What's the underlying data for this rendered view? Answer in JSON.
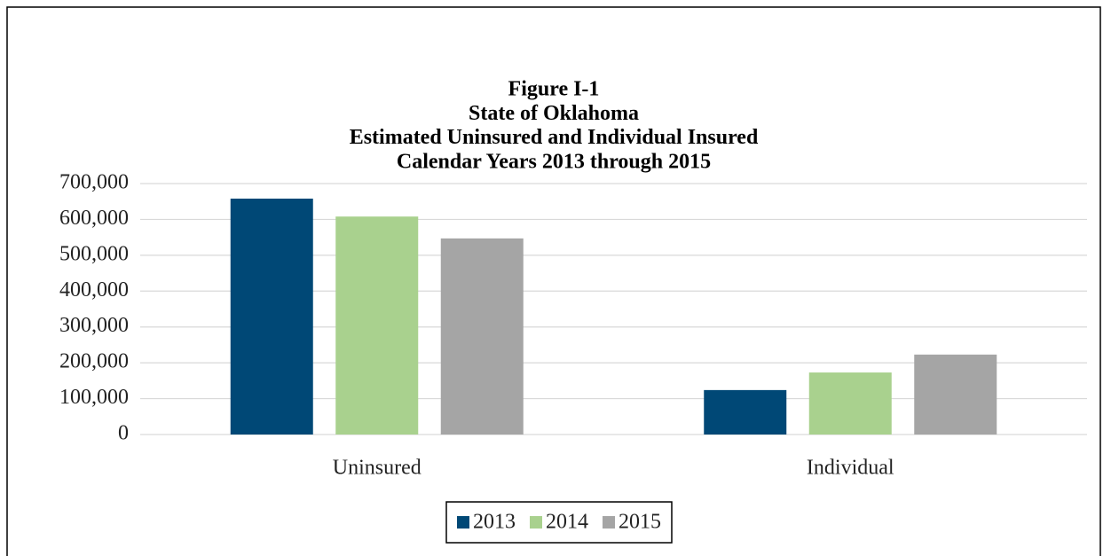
{
  "chart_data": {
    "type": "bar",
    "title": [
      "Figure I-1",
      "State of  Oklahoma",
      "Estimated Uninsured and Individual Insured",
      "Calendar Years 2013 through 2015"
    ],
    "categories": [
      "Uninsured",
      "Individual"
    ],
    "series": [
      {
        "name": "2013",
        "color": "#004876",
        "values": [
          658000,
          124000
        ]
      },
      {
        "name": "2014",
        "color": "#a9d18e",
        "values": [
          608000,
          173000
        ]
      },
      {
        "name": "2015",
        "color": "#a5a5a5",
        "values": [
          547000,
          223000
        ]
      }
    ],
    "ylim": [
      0,
      700000
    ],
    "yticks": [
      0,
      {
        "value": 100000,
        "label": "100,000"
      },
      {
        "value": 200000,
        "label": "200,000"
      },
      {
        "value": 300000,
        "label": "300,000"
      },
      {
        "value": 400000,
        "label": "400,000"
      },
      {
        "value": 500000,
        "label": "500,000"
      },
      {
        "value": 600000,
        "label": "600,000"
      },
      {
        "value": 700000,
        "label": "700,000"
      }
    ],
    "grid": true,
    "legend": "bottom"
  }
}
